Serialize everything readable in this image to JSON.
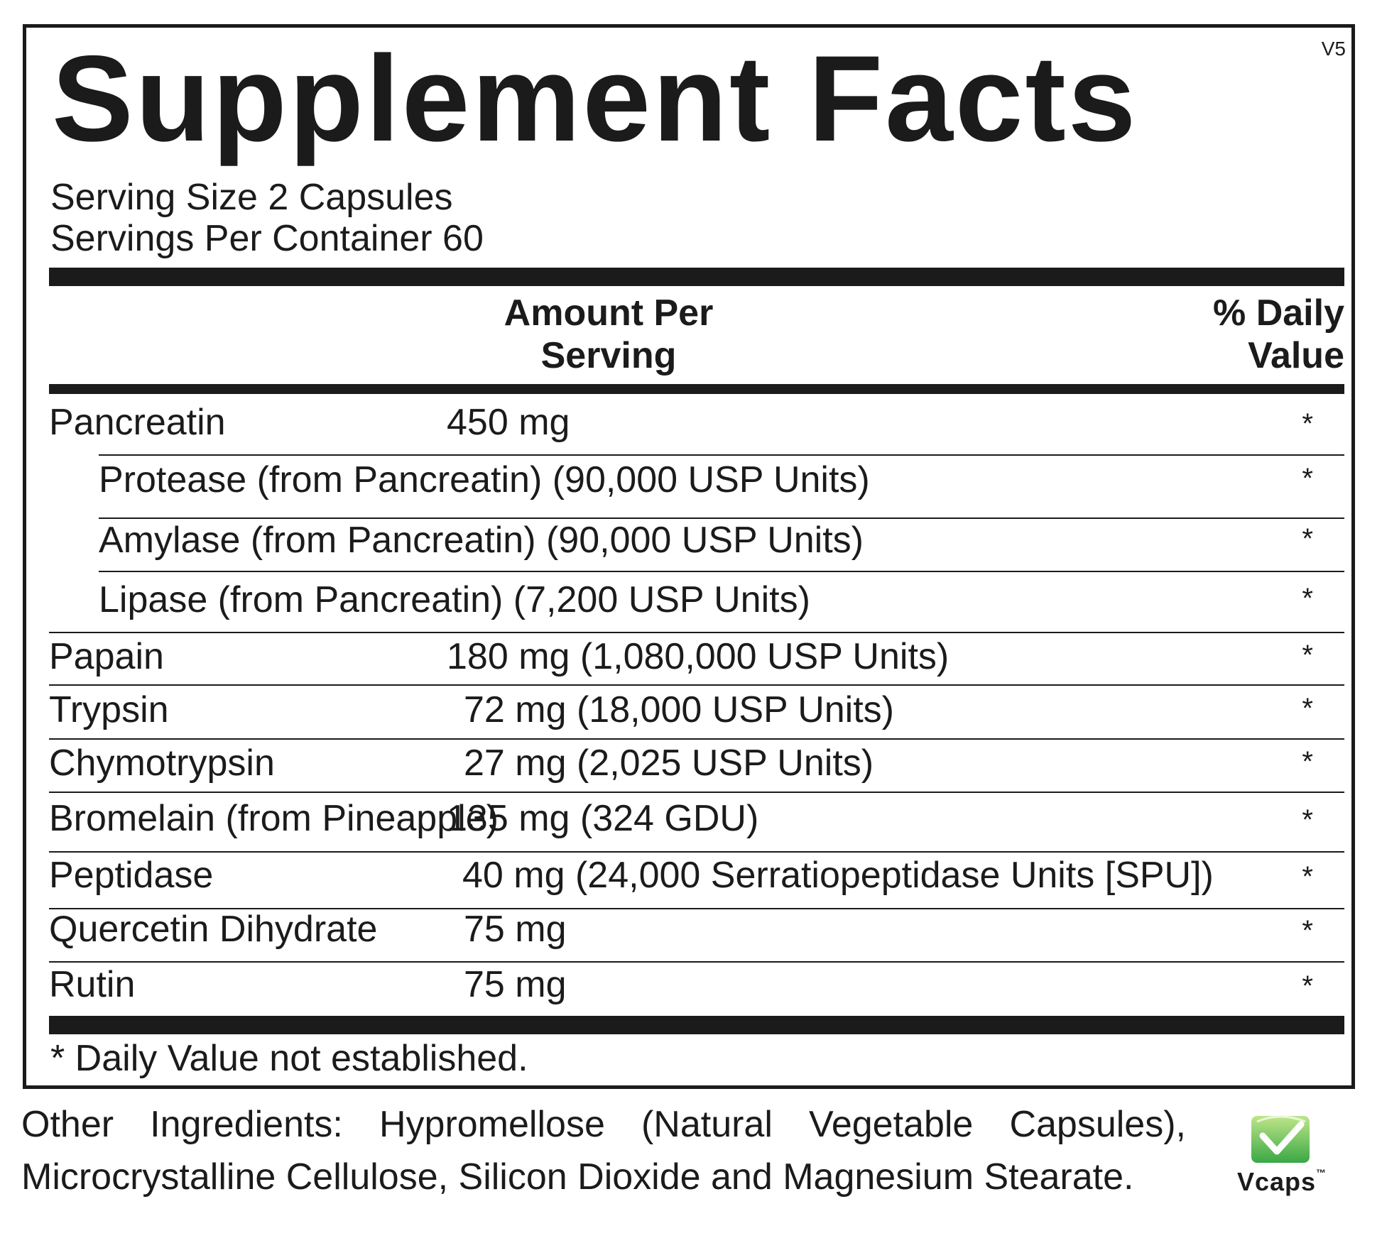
{
  "label": {
    "title": "Supplement Facts",
    "version": "V5",
    "serving_size": "Serving Size  2 Capsules",
    "servings_per_container": "Servings Per Container  60",
    "header_amount_line1": "Amount Per",
    "header_amount_line2": "Serving",
    "header_dv_line1": "% Daily",
    "header_dv_line2": "Value",
    "ingredients": [
      {
        "name": "Pancreatin",
        "amount": "450 mg",
        "dv": "*"
      },
      {
        "name": "Protease (from Pancreatin) (90,000 USP Units)",
        "amount": "",
        "dv": "*"
      },
      {
        "name": "Amylase (from Pancreatin) (90,000 USP Units)",
        "amount": "",
        "dv": "*"
      },
      {
        "name": "Lipase (from Pancreatin) (7,200 USP Units)",
        "amount": "",
        "dv": "*"
      },
      {
        "name": "Papain",
        "amount": "180 mg (1,080,000 USP Units)",
        "dv": "*"
      },
      {
        "name": "Trypsin",
        "amount": "72 mg (18,000 USP Units)",
        "dv": "*"
      },
      {
        "name": "Chymotrypsin",
        "amount": "27 mg (2,025 USP Units)",
        "dv": "*"
      },
      {
        "name": "Bromelain (from Pineapple)",
        "amount": "135 mg (324 GDU)",
        "dv": "*"
      },
      {
        "name": "Peptidase",
        "amount": "40 mg (24,000 Serratiopeptidase Units [SPU])",
        "dv": "*"
      },
      {
        "name": "Quercetin Dihydrate",
        "amount": "75 mg",
        "dv": "*"
      },
      {
        "name": "Rutin",
        "amount": "75 mg",
        "dv": "*"
      }
    ],
    "footnote": "* Daily Value not established."
  },
  "other_ingredients": "Other Ingredients:  Hypromellose (Natural Vegetable Capsules), Microcrystalline Cellulose, Silicon Dioxide and Magnesium Stearate.",
  "logo": {
    "word": "Vcaps",
    "trademark": "™",
    "colors": {
      "green": "#3aa845",
      "light_green": "#9fd36b",
      "dark": "#1b1b1b"
    }
  }
}
